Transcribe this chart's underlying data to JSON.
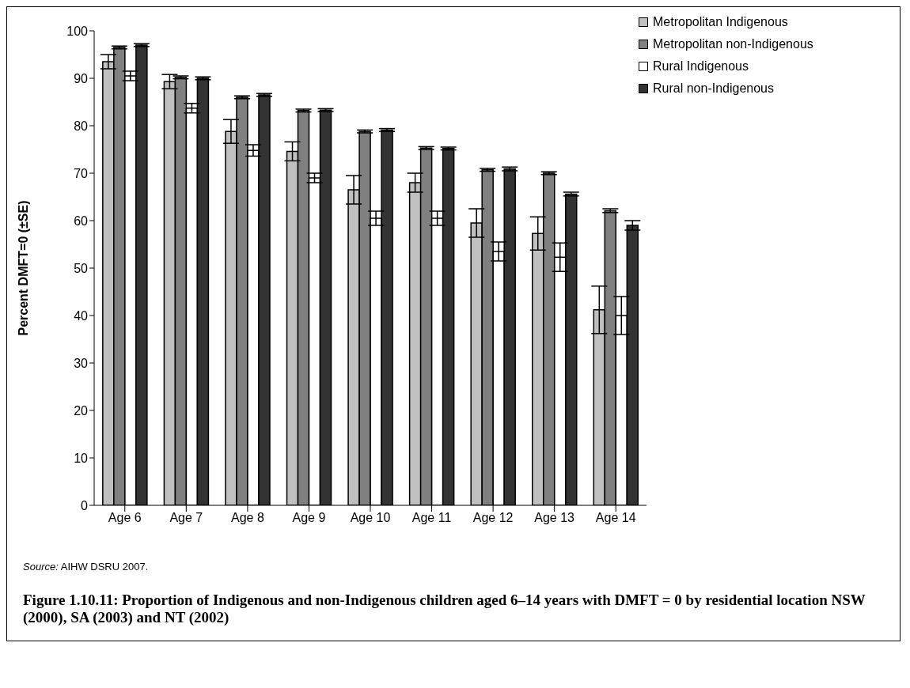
{
  "chart_data": {
    "type": "bar",
    "title": "Figure 1.10.11: Proportion of Indigenous and non-Indigenous children aged 6–14 years with DMFT = 0 by residential location NSW (2000), SA (2003) and NT (2002)",
    "ylabel": "Percent DMFT=0 (±SE)",
    "annotations": [
      "Source: AIHW DSRU 2007."
    ],
    "categories": [
      "Age 6",
      "Age 7",
      "Age 8",
      "Age 9",
      "Age 10",
      "Age 11",
      "Age 12",
      "Age 13",
      "Age 14"
    ],
    "series": [
      {
        "name": "Metropolitan Indigenous",
        "color": "#c0c0c0",
        "values": [
          93.5,
          89.3,
          78.8,
          74.6,
          66.5,
          68,
          59.5,
          57.3,
          41.2
        ],
        "errors": [
          1.5,
          1.5,
          2.5,
          2,
          3,
          2,
          3,
          3.5,
          5
        ]
      },
      {
        "name": "Metropolitan non-Indigenous",
        "color": "#808080",
        "values": [
          96.5,
          90.2,
          86,
          83.2,
          78.8,
          75.3,
          70.7,
          70,
          62.1
        ],
        "errors": [
          0.3,
          0.3,
          0.3,
          0.3,
          0.3,
          0.3,
          0.3,
          0.3,
          0.4
        ]
      },
      {
        "name": "Rural Indigenous",
        "color": "#ffffff",
        "values": [
          90.5,
          83.7,
          74.8,
          69,
          60.5,
          60.5,
          53.5,
          52.3,
          40
        ],
        "errors": [
          1,
          1,
          1.2,
          1,
          1.5,
          1.5,
          2,
          3,
          4
        ]
      },
      {
        "name": "Rural non-Indigenous",
        "color": "#333333",
        "values": [
          97,
          90,
          86.5,
          83.3,
          79.1,
          75.2,
          70.9,
          65.6,
          59
        ],
        "errors": [
          0.3,
          0.3,
          0.3,
          0.3,
          0.3,
          0.3,
          0.4,
          0.4,
          1
        ]
      }
    ],
    "ylim": [
      0,
      100
    ],
    "yticks": [
      0,
      10,
      20,
      30,
      40,
      50,
      60,
      70,
      80,
      90,
      100
    ],
    "grid": false,
    "legend": "top right"
  }
}
